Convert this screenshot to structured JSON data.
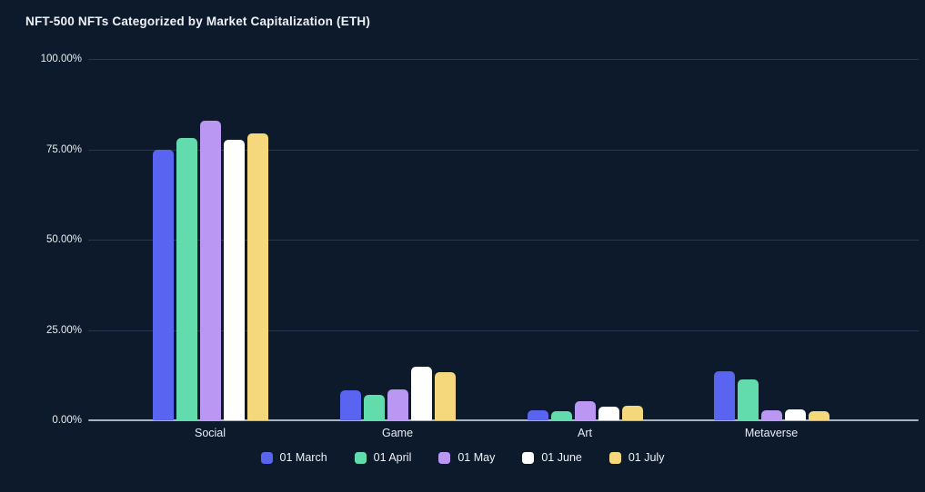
{
  "title": "NFT-500 NFTs Categorized by Market Capitalization (ETH)",
  "colors": {
    "background": "#0c1a2b",
    "gridline": "#26374e",
    "axis_line": "#a9b2bf",
    "text": "#eef2f7"
  },
  "chart_data": {
    "type": "bar",
    "title": "NFT-500 NFTs Categorized by Market Capitalization (ETH)",
    "xlabel": "",
    "ylabel": "",
    "categories": [
      "Social",
      "Game",
      "Art",
      "Metaverse"
    ],
    "series": [
      {
        "name": "01 March",
        "color": "#5964f0",
        "values": [
          75.0,
          8.3,
          2.8,
          13.6
        ]
      },
      {
        "name": "01 April",
        "color": "#63dcad",
        "values": [
          78.2,
          7.0,
          2.6,
          11.4
        ]
      },
      {
        "name": "01 May",
        "color": "#ba97f2",
        "values": [
          82.8,
          8.6,
          5.4,
          2.7
        ]
      },
      {
        "name": "01 June",
        "color": "#ffffff",
        "values": [
          77.7,
          14.7,
          3.8,
          2.9
        ]
      },
      {
        "name": "01 July",
        "color": "#f4d87b",
        "values": [
          79.5,
          13.2,
          4.0,
          2.4
        ]
      }
    ],
    "ylim": [
      0,
      100
    ],
    "yticks": [
      {
        "value": 100,
        "label": "100.00%"
      },
      {
        "value": 75,
        "label": "75.00%"
      },
      {
        "value": 50,
        "label": "50.00%"
      },
      {
        "value": 25,
        "label": "25.00%"
      },
      {
        "value": 0,
        "label": "0.00%"
      }
    ],
    "grid": true,
    "legend_position": "bottom-center"
  }
}
